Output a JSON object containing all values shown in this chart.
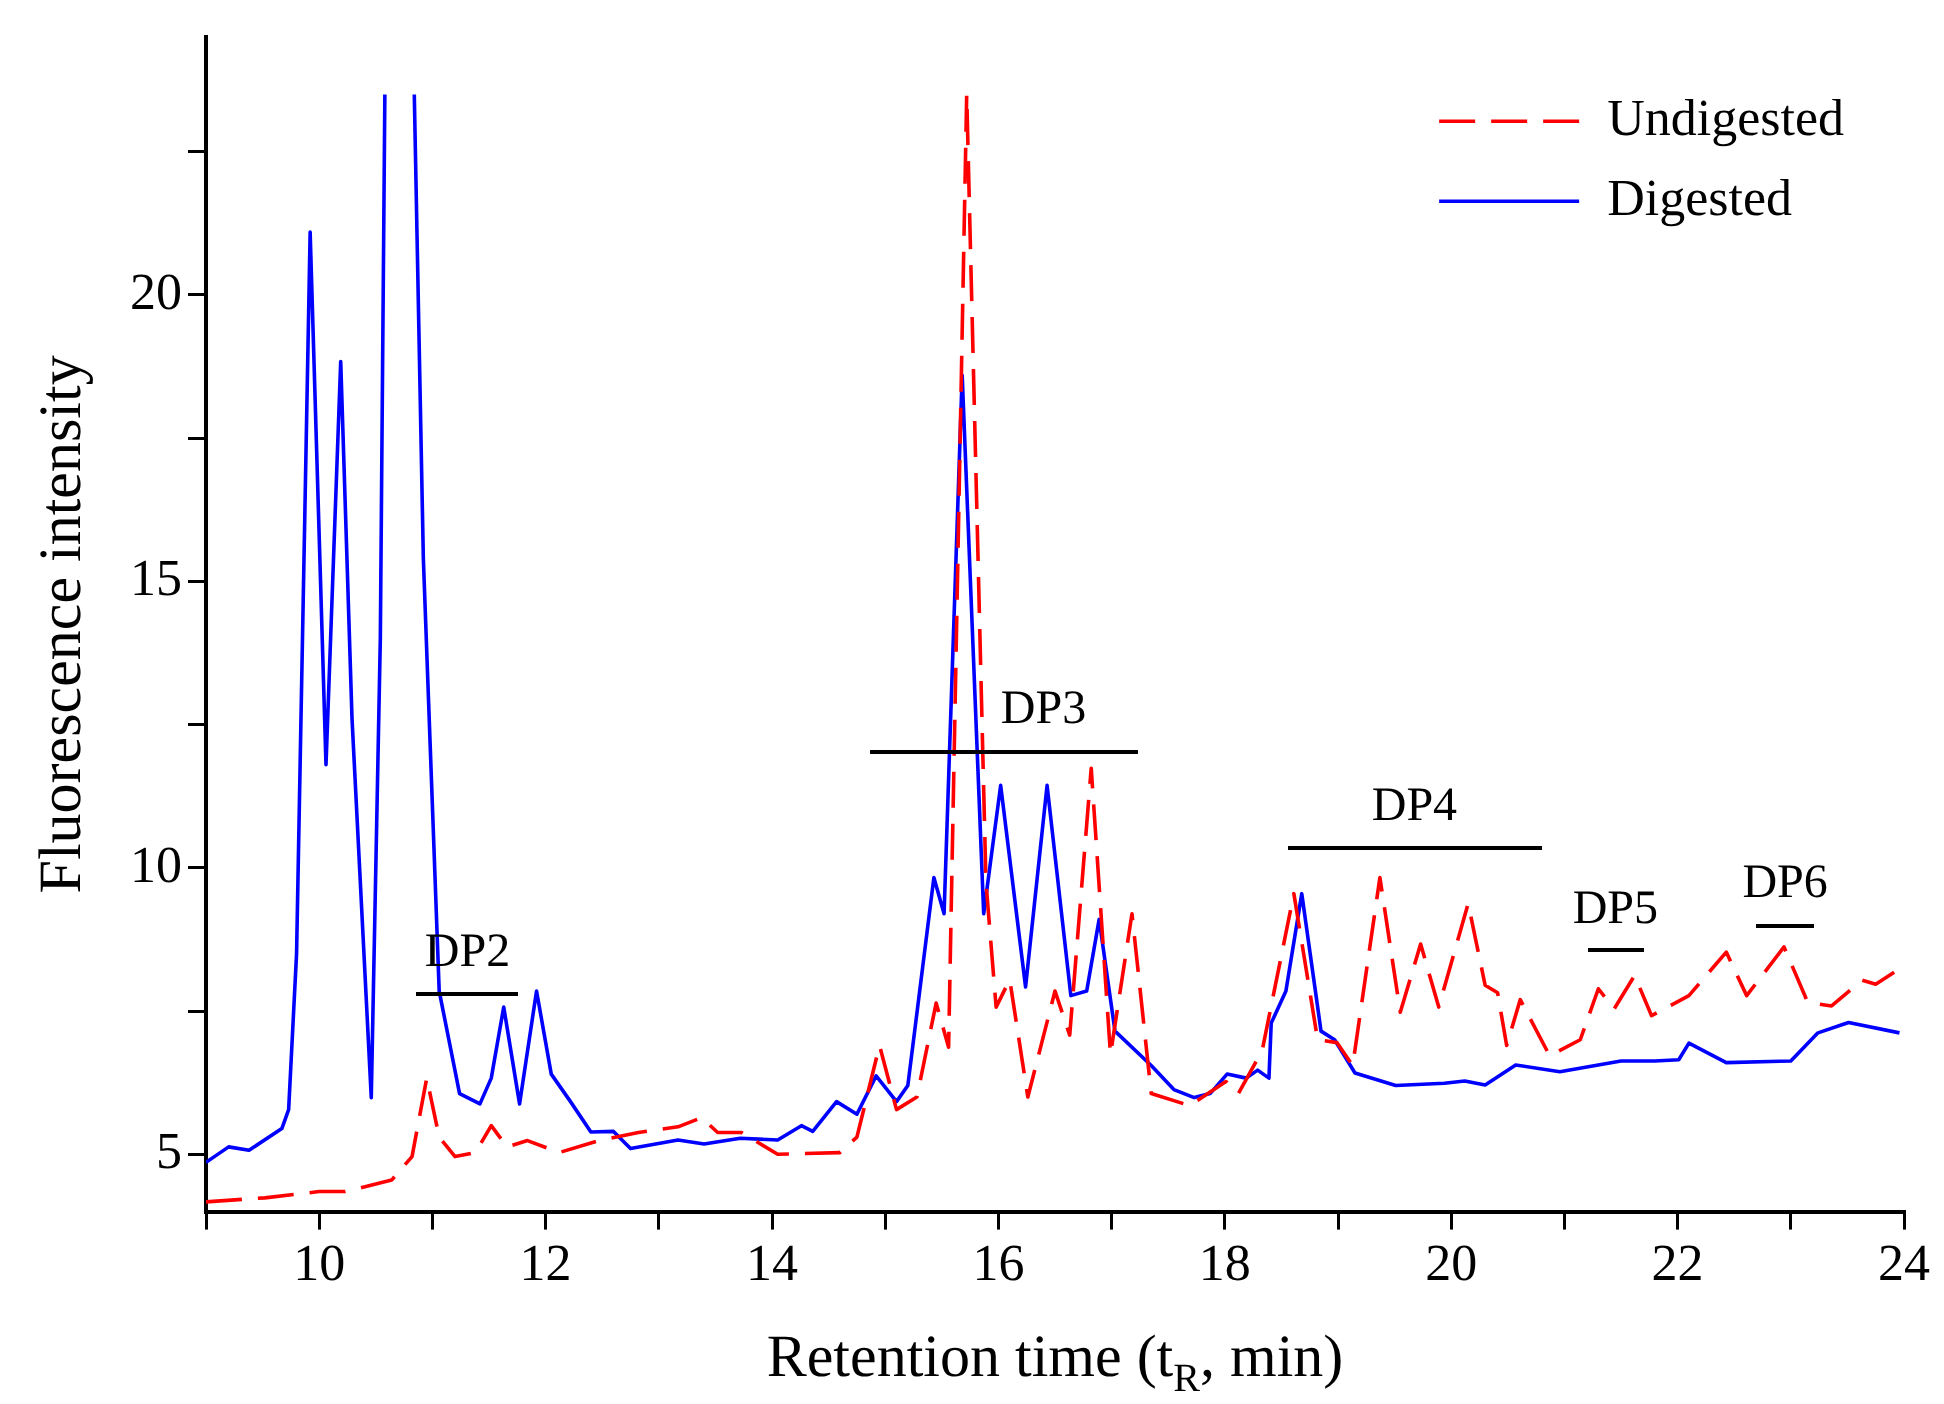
{
  "chart_data": {
    "type": "line",
    "xlabel": "Retention time (t$_{R}$, min)",
    "ylabel": "Fluorescence intensity",
    "xlim": [
      9,
      24
    ],
    "ylim": [
      4,
      24.5
    ],
    "xticks": [
      {
        "value": 9,
        "label": null
      },
      10,
      {
        "value": 11,
        "label": null
      },
      12,
      {
        "value": 13,
        "label": null
      },
      14,
      {
        "value": 15,
        "label": null
      },
      16,
      {
        "value": 17,
        "label": null
      },
      18,
      {
        "value": 19,
        "label": null
      },
      20,
      {
        "value": 21,
        "label": null
      },
      22,
      {
        "value": 23,
        "label": null
      },
      24
    ],
    "yticks": [
      5,
      {
        "value": 7.5,
        "label": null
      },
      10,
      {
        "value": 12.5,
        "label": null
      },
      15,
      {
        "value": 17.5,
        "label": null
      },
      20,
      {
        "value": 22.5,
        "label": null
      }
    ],
    "grid": false,
    "legend": "top right",
    "marker": "none",
    "series": [
      {
        "name": "Undigested",
        "color": "#ff0000",
        "line_style": "dashed",
        "x": [
          9.0,
          9.52,
          10.0,
          10.23,
          10.64,
          10.82,
          10.95,
          11.06,
          11.2,
          11.38,
          11.52,
          11.66,
          11.84,
          12.12,
          12.47,
          12.82,
          13.17,
          13.38,
          13.52,
          13.73,
          14.05,
          14.6,
          14.75,
          14.95,
          15.1,
          15.28,
          15.45,
          15.56,
          15.72,
          15.89,
          15.98,
          16.1,
          16.26,
          16.5,
          16.63,
          16.82,
          16.99,
          17.18,
          17.35,
          17.69,
          18.01,
          18.12,
          18.33,
          18.61,
          18.82,
          18.99,
          19.13,
          19.37,
          19.55,
          19.73,
          19.89,
          20.15,
          20.3,
          20.41,
          20.49,
          20.61,
          20.87,
          21.14,
          21.3,
          21.44,
          21.62,
          21.77,
          22.1,
          22.43,
          22.61,
          22.94,
          23.15,
          23.36,
          23.63,
          23.75,
          23.96
        ],
        "values": [
          4.17,
          4.24,
          4.35,
          4.35,
          4.55,
          4.96,
          6.33,
          5.3,
          4.96,
          5.03,
          5.5,
          5.13,
          5.24,
          5.03,
          5.24,
          5.38,
          5.48,
          5.64,
          5.38,
          5.38,
          5.0,
          5.03,
          5.3,
          6.9,
          5.78,
          6.0,
          7.64,
          6.87,
          23.5,
          9.75,
          7.57,
          8.05,
          6.0,
          7.85,
          7.08,
          11.74,
          6.74,
          9.2,
          6.06,
          5.85,
          6.27,
          6.06,
          6.81,
          9.55,
          7.0,
          6.95,
          6.55,
          9.83,
          7.48,
          8.67,
          7.57,
          9.38,
          7.95,
          7.82,
          6.9,
          7.7,
          6.72,
          7.0,
          7.89,
          7.54,
          8.12,
          7.42,
          7.77,
          8.53,
          7.77,
          8.62,
          7.65,
          7.59,
          8.04,
          7.97,
          8.24
        ]
      },
      {
        "name": "Digested",
        "color": "#0000ff",
        "line_style": "solid",
        "x": [
          9.0,
          9.2,
          9.38,
          9.67,
          9.73,
          9.8,
          9.92,
          10.06,
          10.19,
          10.29,
          10.46,
          10.54,
          10.58,
          10.72,
          10.84,
          10.92,
          11.06,
          11.24,
          11.42,
          11.52,
          11.63,
          11.77,
          11.92,
          12.05,
          12.22,
          12.4,
          12.6,
          12.75,
          13.17,
          13.4,
          13.72,
          14.05,
          14.26,
          14.36,
          14.57,
          14.75,
          14.92,
          15.1,
          15.2,
          15.43,
          15.52,
          15.68,
          15.87,
          16.02,
          16.24,
          16.43,
          16.64,
          16.78,
          16.89,
          17.03,
          17.35,
          17.55,
          17.73,
          17.87,
          18.02,
          18.19,
          18.29,
          18.39,
          18.41,
          18.54,
          18.68,
          18.85,
          18.97,
          19.15,
          19.51,
          19.94,
          20.12,
          20.3,
          20.57,
          20.96,
          21.5,
          21.8,
          22.01,
          22.1,
          22.43,
          23.0,
          23.24,
          23.51,
          23.96
        ],
        "values": [
          4.86,
          5.13,
          5.07,
          5.45,
          5.78,
          8.5,
          21.1,
          11.8,
          18.84,
          12.6,
          5.99,
          14.0,
          23.5,
          null,
          23.5,
          15.4,
          7.85,
          6.06,
          5.88,
          6.33,
          7.57,
          5.88,
          7.85,
          6.4,
          5.92,
          5.39,
          5.4,
          5.1,
          5.25,
          5.18,
          5.28,
          5.25,
          5.5,
          5.4,
          5.92,
          5.7,
          6.37,
          5.92,
          6.2,
          9.83,
          9.2,
          18.6,
          9.2,
          11.44,
          7.92,
          11.44,
          7.77,
          7.85,
          9.1,
          7.15,
          6.55,
          6.13,
          5.99,
          6.06,
          6.4,
          6.33,
          6.47,
          6.33,
          7.29,
          7.85,
          9.55,
          7.15,
          7.0,
          6.42,
          6.2,
          6.24,
          6.28,
          6.21,
          6.56,
          6.44,
          6.63,
          6.63,
          6.65,
          6.94,
          6.6,
          6.63,
          7.12,
          7.3,
          7.12
        ]
      }
    ],
    "annotations": [
      "DP2",
      "DP3",
      "DP4",
      "DP5",
      "DP6"
    ]
  }
}
